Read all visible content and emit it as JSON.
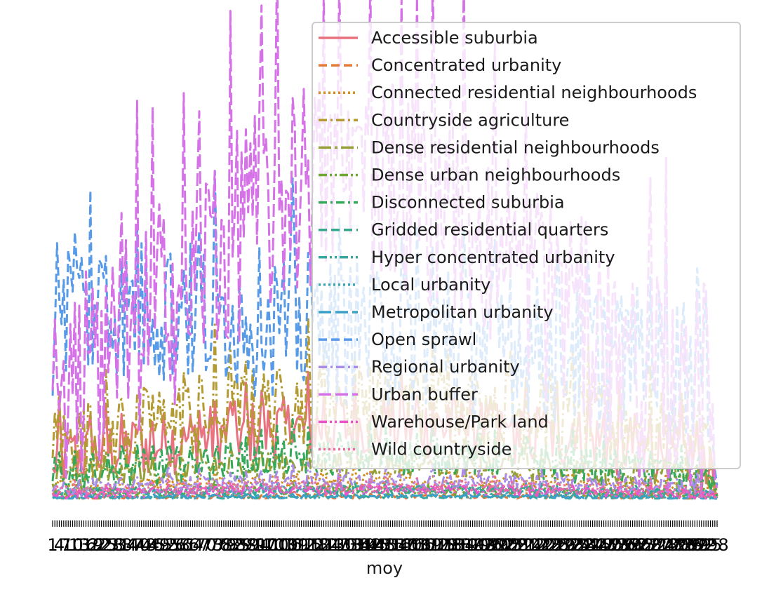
{
  "chart_data": {
    "type": "line",
    "xlabel": "moy",
    "ylabel": "",
    "title": "",
    "x_count": 300,
    "x_tick_range": [
      1,
      300
    ],
    "y_axis_visible": false,
    "ylim": [
      0,
      100
    ],
    "grid": false,
    "legend_position": "upper-right",
    "series": [
      {
        "name": "Accessible suburbia",
        "color": "#e8727f",
        "dash": "solid",
        "baseline": 12,
        "amp": 7,
        "spike": 3
      },
      {
        "name": "Concentrated urbanity",
        "color": "#e67a38",
        "dash": "dashed",
        "baseline": 0.5,
        "amp": 0.5,
        "spike": 0.3
      },
      {
        "name": "Connected residential neighbourhoods",
        "color": "#d38c1d",
        "dash": "dotted",
        "baseline": 3,
        "amp": 2,
        "spike": 1
      },
      {
        "name": "Countryside agriculture",
        "color": "#b49a33",
        "dash": "dashdot",
        "baseline": 16,
        "amp": 9,
        "spike": 5
      },
      {
        "name": "Dense residential neighbourhoods",
        "color": "#96a038",
        "dash": "longdashdot",
        "baseline": 6,
        "amp": 3,
        "spike": 1.5
      },
      {
        "name": "Dense urban neighbourhoods",
        "color": "#6fa833",
        "dash": "dashdotdot",
        "baseline": 1.5,
        "amp": 1.2,
        "spike": 0.5
      },
      {
        "name": "Disconnected suburbia",
        "color": "#35a85a",
        "dash": "dashdot",
        "baseline": 7,
        "amp": 4,
        "spike": 2
      },
      {
        "name": "Gridded residential quarters",
        "color": "#35a88c",
        "dash": "dashed",
        "baseline": 1.5,
        "amp": 1,
        "spike": 0.5
      },
      {
        "name": "Hyper concentrated urbanity",
        "color": "#37a8a0",
        "dash": "dashdotdot",
        "baseline": 0.4,
        "amp": 0.3,
        "spike": 0.2
      },
      {
        "name": "Local urbanity",
        "color": "#39a6b4",
        "dash": "dotted",
        "baseline": 1.5,
        "amp": 1,
        "spike": 0.5
      },
      {
        "name": "Metropolitan urbanity",
        "color": "#3aa0c6",
        "dash": "longdash",
        "baseline": 0.5,
        "amp": 0.4,
        "spike": 0.2
      },
      {
        "name": "Open sprawl",
        "color": "#579ae8",
        "dash": "dashed",
        "baseline": 40,
        "amp": 16,
        "spike": 8
      },
      {
        "name": "Regional urbanity",
        "color": "#a98ce8",
        "dash": "dashdot",
        "baseline": 3,
        "amp": 2,
        "spike": 1
      },
      {
        "name": "Urban buffer",
        "color": "#d672e8",
        "dash": "longdash",
        "baseline": 42,
        "amp": 24,
        "spike": 14
      },
      {
        "name": "Warehouse/Park land",
        "color": "#eb54c8",
        "dash": "dashdotdot",
        "baseline": 1.5,
        "amp": 1,
        "spike": 0.5
      },
      {
        "name": "Wild countryside",
        "color": "#ec6d9f",
        "dash": "dotted",
        "baseline": 2,
        "amp": 1.5,
        "spike": 0.7
      }
    ]
  }
}
